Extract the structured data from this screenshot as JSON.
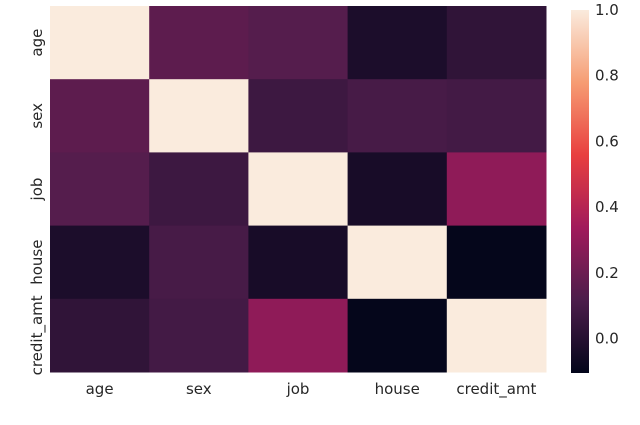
{
  "chart_data": {
    "type": "heatmap",
    "title": "",
    "x_labels": [
      "age",
      "sex",
      "job",
      "house",
      "credit_amt"
    ],
    "y_labels": [
      "age",
      "sex",
      "job",
      "house",
      "credit_amt"
    ],
    "values": [
      [
        1.0,
        0.16,
        0.14,
        -0.03,
        0.03
      ],
      [
        0.16,
        1.0,
        0.07,
        0.1,
        0.09
      ],
      [
        0.14,
        0.07,
        1.0,
        -0.04,
        0.29
      ],
      [
        -0.03,
        0.1,
        -0.04,
        1.0,
        -0.1
      ],
      [
        0.03,
        0.09,
        0.29,
        -0.1,
        1.0
      ]
    ],
    "colormap": "rocket",
    "colorbar": {
      "vmin": -0.105,
      "vmax": 1.0,
      "ticks": [
        "0.0",
        "0.2",
        "0.4",
        "0.6",
        "0.8",
        "1.0"
      ],
      "tick_values": [
        0,
        0.2,
        0.4,
        0.6,
        0.8,
        1.0
      ]
    },
    "colormap_stops": [
      "#03051A",
      "#4C1D4B",
      "#A11A5B",
      "#E83F3F",
      "#F69C73",
      "#FAEBDD"
    ]
  }
}
